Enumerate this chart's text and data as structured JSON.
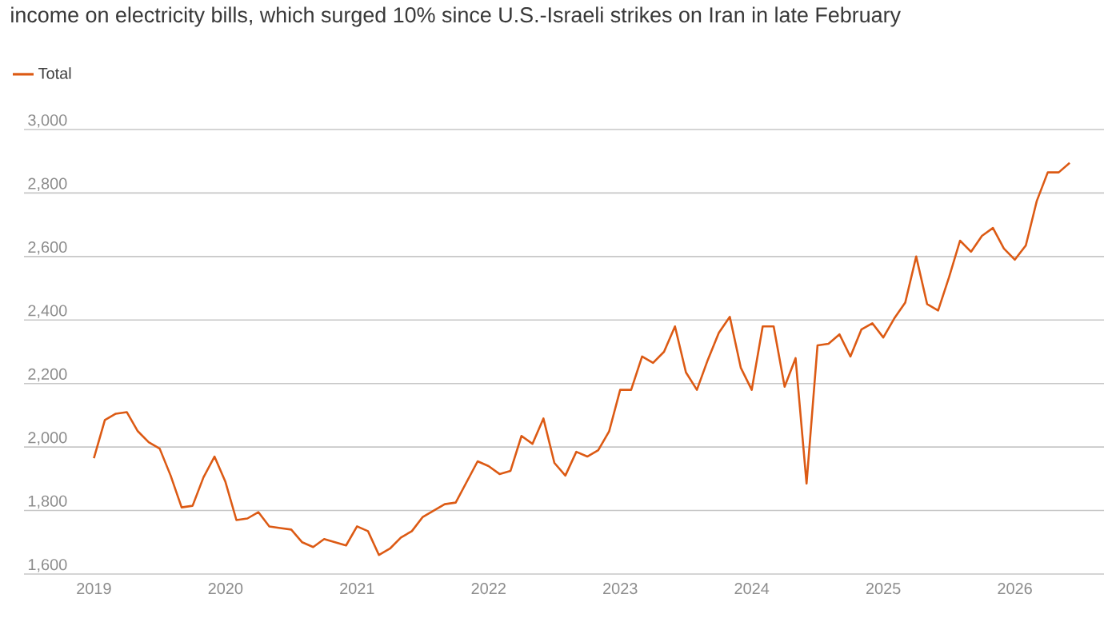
{
  "chart_data": {
    "type": "line",
    "subtitle": "income on electricity bills, which surged 10% since U.S.-Israeli strikes on Iran in late February",
    "x": [
      "2019-01",
      "2019-02",
      "2019-03",
      "2019-04",
      "2019-05",
      "2019-06",
      "2019-07",
      "2019-08",
      "2019-09",
      "2019-10",
      "2019-11",
      "2019-12",
      "2020-01",
      "2020-02",
      "2020-03",
      "2020-04",
      "2020-05",
      "2020-06",
      "2020-07",
      "2020-08",
      "2020-09",
      "2020-10",
      "2020-11",
      "2020-12",
      "2021-01",
      "2021-02",
      "2021-03",
      "2021-04",
      "2021-05",
      "2021-06",
      "2021-07",
      "2021-08",
      "2021-09",
      "2021-10",
      "2021-11",
      "2021-12",
      "2022-01",
      "2022-02",
      "2022-03",
      "2022-04",
      "2022-05",
      "2022-06",
      "2022-07",
      "2022-08",
      "2022-09",
      "2022-10",
      "2022-11",
      "2022-12",
      "2023-01",
      "2023-02",
      "2023-03",
      "2023-04",
      "2023-05",
      "2023-06",
      "2023-07",
      "2023-08",
      "2023-09",
      "2023-10",
      "2023-11",
      "2023-12",
      "2024-01",
      "2024-02",
      "2024-03",
      "2024-04",
      "2024-05",
      "2024-06",
      "2024-07",
      "2024-08",
      "2024-09",
      "2024-10",
      "2024-11",
      "2024-12",
      "2025-01",
      "2025-02",
      "2025-03",
      "2025-04",
      "2025-05",
      "2025-06",
      "2025-07",
      "2025-08",
      "2025-09",
      "2025-10",
      "2025-11",
      "2025-12",
      "2026-01",
      "2026-02",
      "2026-03",
      "2026-04",
      "2026-05",
      "2026-06"
    ],
    "series": [
      {
        "name": "Total",
        "color": "#dc5a14",
        "values": [
          1965,
          2085,
          2105,
          2110,
          2050,
          2015,
          1995,
          1910,
          1810,
          1815,
          1905,
          1970,
          1890,
          1770,
          1775,
          1795,
          1750,
          1745,
          1740,
          1700,
          1685,
          1710,
          1700,
          1690,
          1750,
          1735,
          1660,
          1680,
          1715,
          1735,
          1780,
          1800,
          1820,
          1825,
          1890,
          1955,
          1940,
          1915,
          1925,
          2035,
          2010,
          2090,
          1950,
          1910,
          1985,
          1970,
          1990,
          2050,
          2180,
          2180,
          2285,
          2265,
          2300,
          2380,
          2235,
          2180,
          2275,
          2360,
          2410,
          2250,
          2180,
          2380,
          2380,
          2190,
          2280,
          1885,
          2320,
          2325,
          2355,
          2285,
          2370,
          2390,
          2345,
          2405,
          2455,
          2600,
          2450,
          2430,
          2535,
          2650,
          2615,
          2665,
          2690,
          2625,
          2590,
          2635,
          2775,
          2865,
          2865,
          2895
        ]
      }
    ],
    "xlim": [
      "2018-06-20",
      "2026-09-05"
    ],
    "xticks": [
      {
        "value": "2019",
        "label": "2019"
      },
      {
        "value": "2020",
        "label": "2020"
      },
      {
        "value": "2021",
        "label": "2021"
      },
      {
        "value": "2022",
        "label": "2022"
      },
      {
        "value": "2023",
        "label": "2023"
      },
      {
        "value": "2024",
        "label": "2024"
      },
      {
        "value": "2025",
        "label": "2025"
      },
      {
        "value": "2026",
        "label": "2026"
      }
    ],
    "ylim": [
      1600,
      3000
    ],
    "yticks": [
      {
        "value": 1600,
        "label": "1,600"
      },
      {
        "value": 1800,
        "label": "1,800"
      },
      {
        "value": 2000,
        "label": "2,000"
      },
      {
        "value": 2200,
        "label": "2,200"
      },
      {
        "value": 2400,
        "label": "2,400"
      },
      {
        "value": 2600,
        "label": "2,600"
      },
      {
        "value": 2800,
        "label": "2,800"
      },
      {
        "value": 3000,
        "label": "3,000"
      }
    ],
    "grid": "y",
    "legend": "top left",
    "marker": "none",
    "line_style": "solid"
  }
}
